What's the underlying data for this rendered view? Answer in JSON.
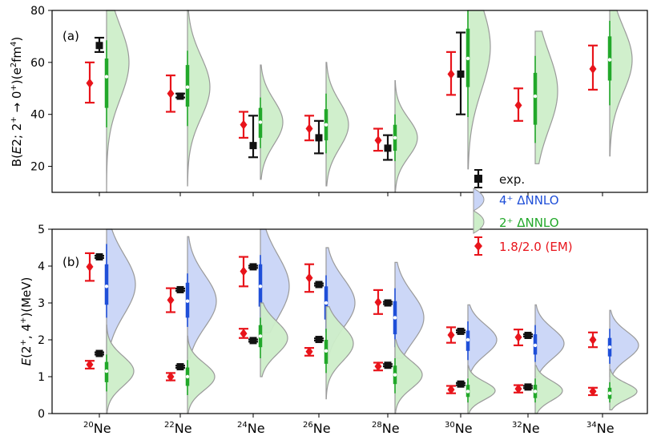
{
  "chart_data": [
    {
      "type": "scatter",
      "panel_label": "(a)",
      "ylabel_main": "B(",
      "ylabel_italic": "E",
      "ylabel_rest": "2; 2",
      "ylabel_sup1": "+",
      "ylabel_mid": " → 0",
      "ylabel_sup2": "+",
      "ylabel_end": ")(e",
      "ylabel_sup3": "2",
      "ylabel_fm": "fm",
      "ylabel_sup4": "4",
      "ylabel_close": ")",
      "ylim": [
        10,
        80
      ],
      "yticks": [
        20,
        40,
        60,
        80
      ],
      "categories": [
        "20Ne",
        "22Ne",
        "24Ne",
        "26Ne",
        "28Ne",
        "30Ne",
        "32Ne",
        "34Ne"
      ],
      "series": [
        {
          "name": "1.8/2.0 (EM)",
          "color": "#e8141b",
          "values": [
            52.0,
            48.0,
            36.0,
            34.5,
            30.0,
            55.5,
            43.5,
            57.5
          ],
          "err_low": [
            44.5,
            41.0,
            31.0,
            30.0,
            26.0,
            47.5,
            37.5,
            49.5
          ],
          "err_high": [
            60.0,
            55.0,
            41.0,
            39.5,
            34.5,
            64.0,
            50.0,
            66.5
          ]
        },
        {
          "name": "exp.",
          "color": "#111111",
          "values": [
            66.5,
            47.0,
            28.0,
            31.0,
            27.0,
            55.5,
            null,
            null
          ],
          "err_low": [
            64.0,
            46.5,
            23.5,
            25.0,
            22.5,
            40.0,
            null,
            null
          ],
          "err_high": [
            69.5,
            48.0,
            39.5,
            37.5,
            32.0,
            71.5,
            null,
            null
          ]
        }
      ],
      "distributions_2plus": [
        {
          "median": 54.5,
          "q1": 42.5,
          "q3": 61.5,
          "p5": 35.0,
          "p95": 68.5,
          "min": 10.0,
          "max": 80.0,
          "mode": 60.0
        },
        {
          "median": 50.5,
          "q1": 43.0,
          "q3": 59.0,
          "p5": 35.5,
          "p95": 64.5,
          "min": 12.5,
          "max": 80.0,
          "mode": 50.5
        },
        {
          "median": 37.0,
          "q1": 31.0,
          "q3": 42.5,
          "p5": 27.0,
          "p95": 46.5,
          "min": 15.0,
          "max": 59.0,
          "mode": 37.0
        },
        {
          "median": 36.0,
          "q1": 30.0,
          "q3": 42.0,
          "p5": 25.0,
          "p95": 48.0,
          "min": 12.5,
          "max": 60.0,
          "mode": 36.0
        },
        {
          "median": 31.0,
          "q1": 26.0,
          "q3": 36.0,
          "p5": 22.0,
          "p95": 40.0,
          "min": 10.0,
          "max": 53.0,
          "mode": 31.0
        },
        {
          "median": 61.5,
          "q1": 50.5,
          "q3": 73.0,
          "p5": 39.0,
          "p95": 80.0,
          "min": 19.0,
          "max": 80.0,
          "mode": 66.0
        },
        {
          "median": 47.0,
          "q1": 36.0,
          "q3": 56.0,
          "p5": 29.0,
          "p95": 62.5,
          "min": 21.0,
          "max": 72.0,
          "mode": 49.0
        },
        {
          "median": 61.0,
          "q1": 53.0,
          "q3": 70.0,
          "p5": 43.5,
          "p95": 76.0,
          "min": 24.0,
          "max": 80.0,
          "mode": 61.0
        }
      ]
    },
    {
      "type": "scatter",
      "panel_label": "(b)",
      "ylabel_main": "E",
      "ylabel_rest": "(2",
      "ylabel_sup1": "+",
      "ylabel_mid": ", 4",
      "ylabel_sup2": "+",
      "ylabel_end": ")(MeV)",
      "ylim": [
        0,
        5
      ],
      "yticks": [
        0,
        1,
        2,
        3,
        4,
        5
      ],
      "categories": [
        "20Ne",
        "22Ne",
        "24Ne",
        "26Ne",
        "28Ne",
        "30Ne",
        "32Ne",
        "34Ne"
      ],
      "x_tick_sup": [
        "20",
        "22",
        "24",
        "26",
        "28",
        "30",
        "32",
        "34"
      ],
      "x_tick_base": "Ne",
      "series": [
        {
          "name": "1.8/2.0 (EM) 4+",
          "color": "#e8141b",
          "values": [
            3.98,
            3.08,
            3.86,
            3.68,
            3.02,
            2.13,
            2.07,
            2.0
          ],
          "err_low": [
            3.6,
            2.75,
            3.45,
            3.3,
            2.7,
            1.92,
            1.85,
            1.8
          ],
          "err_high": [
            4.35,
            3.4,
            4.25,
            4.05,
            3.35,
            2.34,
            2.28,
            2.2
          ]
        },
        {
          "name": "1.8/2.0 (EM) 2+",
          "color": "#e8141b",
          "values": [
            1.33,
            1.0,
            2.17,
            1.68,
            1.28,
            0.65,
            0.67,
            0.6
          ],
          "err_low": [
            1.22,
            0.9,
            2.05,
            1.57,
            1.17,
            0.55,
            0.57,
            0.5
          ],
          "err_high": [
            1.43,
            1.1,
            2.3,
            1.78,
            1.38,
            0.75,
            0.77,
            0.7
          ]
        },
        {
          "name": "exp. 4+",
          "color": "#111111",
          "values": [
            4.25,
            3.36,
            3.98,
            3.5,
            3.0,
            2.23,
            2.12,
            null
          ],
          "err_low": [
            4.22,
            3.33,
            3.95,
            3.47,
            2.97,
            2.2,
            2.09,
            null
          ],
          "err_high": [
            4.28,
            3.39,
            4.01,
            3.53,
            3.03,
            2.26,
            2.15,
            null
          ]
        },
        {
          "name": "exp. 2+",
          "color": "#111111",
          "values": [
            1.63,
            1.27,
            1.98,
            2.01,
            1.31,
            0.8,
            0.72,
            null
          ],
          "err_low": [
            1.6,
            1.24,
            1.95,
            1.98,
            1.28,
            0.77,
            0.69,
            null
          ],
          "err_high": [
            1.66,
            1.3,
            2.01,
            2.04,
            1.34,
            0.83,
            0.75,
            null
          ]
        }
      ],
      "distributions_4plus": [
        {
          "median": 3.45,
          "q1": 2.95,
          "q3": 4.05,
          "p5": 2.6,
          "p95": 4.6,
          "min": 1.6,
          "max": 5.0,
          "mode": 3.5
        },
        {
          "median": 3.05,
          "q1": 2.6,
          "q3": 3.55,
          "p5": 2.35,
          "p95": 3.8,
          "min": 1.5,
          "max": 4.8,
          "mode": 3.05
        },
        {
          "median": 3.45,
          "q1": 2.9,
          "q3": 4.05,
          "p5": 2.45,
          "p95": 4.3,
          "min": 2.2,
          "max": 5.0,
          "mode": 3.45
        },
        {
          "median": 3.0,
          "q1": 2.55,
          "q3": 3.45,
          "p5": 2.2,
          "p95": 3.75,
          "min": 1.5,
          "max": 4.5,
          "mode": 3.0
        },
        {
          "median": 2.6,
          "q1": 2.15,
          "q3": 3.05,
          "p5": 1.8,
          "p95": 3.4,
          "min": 1.5,
          "max": 4.1,
          "mode": 2.6
        },
        {
          "median": 2.0,
          "q1": 1.7,
          "q3": 2.25,
          "p5": 1.45,
          "p95": 2.5,
          "min": 1.0,
          "max": 2.95,
          "mode": 2.0
        },
        {
          "median": 1.85,
          "q1": 1.6,
          "q3": 2.15,
          "p5": 1.4,
          "p95": 2.4,
          "min": 1.0,
          "max": 2.95,
          "mode": 1.9
        },
        {
          "median": 1.8,
          "q1": 1.55,
          "q3": 2.05,
          "p5": 1.35,
          "p95": 2.3,
          "min": 1.0,
          "max": 2.8,
          "mode": 1.85
        }
      ],
      "distributions_2plus": [
        {
          "median": 1.15,
          "q1": 0.85,
          "q3": 1.4,
          "p5": 0.6,
          "p95": 1.6,
          "min": 0.0,
          "max": 2.4,
          "mode": 1.15
        },
        {
          "median": 1.0,
          "q1": 0.75,
          "q3": 1.25,
          "p5": 0.5,
          "p95": 1.45,
          "min": 0.0,
          "max": 2.1,
          "mode": 1.0
        },
        {
          "median": 2.1,
          "q1": 1.8,
          "q3": 2.4,
          "p5": 1.5,
          "p95": 2.6,
          "min": 1.0,
          "max": 3.0,
          "mode": 2.05
        },
        {
          "median": 1.7,
          "q1": 1.35,
          "q3": 2.0,
          "p5": 1.1,
          "p95": 2.3,
          "min": 0.4,
          "max": 2.9,
          "mode": 1.9
        },
        {
          "median": 1.05,
          "q1": 0.8,
          "q3": 1.3,
          "p5": 0.55,
          "p95": 1.5,
          "min": 0.0,
          "max": 2.0,
          "mode": 1.05
        },
        {
          "median": 0.6,
          "q1": 0.45,
          "q3": 0.78,
          "p5": 0.3,
          "p95": 0.95,
          "min": 0.0,
          "max": 1.3,
          "mode": 0.62
        },
        {
          "median": 0.6,
          "q1": 0.42,
          "q3": 0.78,
          "p5": 0.3,
          "p95": 0.95,
          "min": 0.0,
          "max": 1.3,
          "mode": 0.62
        },
        {
          "median": 0.55,
          "q1": 0.4,
          "q3": 0.7,
          "p5": 0.3,
          "p95": 0.85,
          "min": 0.1,
          "max": 1.2,
          "mode": 0.6
        }
      ]
    }
  ],
  "legend": {
    "placement": "center-right",
    "items": [
      {
        "label": "exp.",
        "kind": "errorbar-square",
        "color": "#111111"
      },
      {
        "label": "4⁺ ΔNNLO",
        "kind": "violin",
        "color": "#1f4fd8"
      },
      {
        "label": "2⁺ ΔNNLO",
        "kind": "violin",
        "color": "#22a82a"
      },
      {
        "label": "1.8/2.0 (EM)",
        "kind": "errorbar-diamond",
        "color": "#e8141b"
      }
    ]
  },
  "colors": {
    "em": "#e8141b",
    "exp": "#111111",
    "blue_line": "#1f4fd8",
    "blue_fill": "#c9d5f7",
    "green_line": "#22a82a",
    "green_fill": "#cdeec9"
  }
}
